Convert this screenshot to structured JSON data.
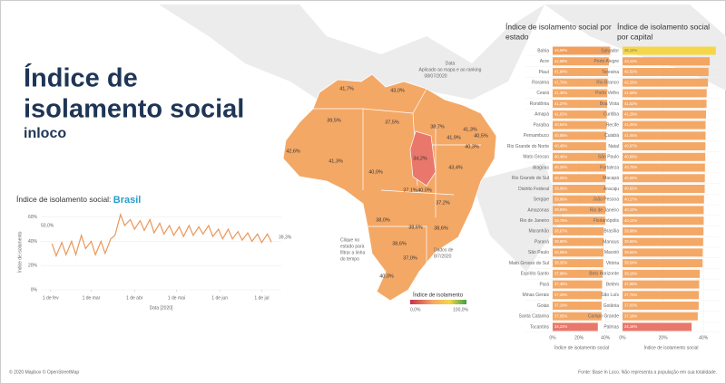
{
  "header": {
    "title_line1": "Índice de",
    "title_line2": "isolamento social",
    "subtitle": "inloco"
  },
  "map": {
    "labels": [
      "41,7%",
      "43,0%",
      "39,5%",
      "37,5%",
      "38,7%",
      "41,3%",
      "41,9%",
      "40,5%",
      "40,3%",
      "42,6%",
      "41,3%",
      "40,0%",
      "34,2%",
      "43,4%",
      "37,1%",
      "40,0%",
      "37,2%",
      "38,0%",
      "38,6%",
      "38,6%",
      "37,0%",
      "38,6%",
      "40,0%"
    ],
    "date_note": [
      "Data",
      "Aplicado ao mapa e ao ranking",
      "08/07/2020"
    ],
    "click_note": [
      "Clique no",
      "estado para",
      "filtrar a linha",
      "do tempo"
    ],
    "data_note": [
      "Dados de",
      "8/7/2020"
    ],
    "legend_title": "Índice de isolamento",
    "legend_min": "0,0%",
    "legend_max": "100,0%"
  },
  "footer": {
    "left": "© 2020 Mapbox © OpenStreetMap",
    "right": "Fonte: Base In Loco. Não representa a população em sua totalidade."
  },
  "chart_data": [
    {
      "type": "line",
      "title": "Índice de isolamento social: ",
      "title_highlight": "Brasil",
      "y_label": "Índice de isolamento",
      "x_label": "Data [2020]",
      "annotations": [
        "50,0%",
        "39,3%"
      ],
      "xlim": [
        "2020-01-25",
        "2020-07-15"
      ],
      "xticks": [
        {
          "value": "2020-02-01",
          "label": "1 de fev"
        },
        {
          "value": "2020-03-01",
          "label": "1 de mar"
        },
        {
          "value": "2020-04-01",
          "label": "1 de abr"
        },
        {
          "value": "2020-05-01",
          "label": "1 de mai"
        },
        {
          "value": "2020-06-01",
          "label": "1 de jun"
        },
        {
          "value": "2020-07-01",
          "label": "1 de jul"
        }
      ],
      "ylim": [
        0,
        62
      ],
      "yticks": [
        {
          "value": 0,
          "label": "0%"
        },
        {
          "value": 20,
          "label": "20%"
        },
        {
          "value": 40,
          "label": "40%"
        },
        {
          "value": 60,
          "label": "60%"
        }
      ],
      "x": [
        "2020-02-02",
        "2020-02-05",
        "2020-02-09",
        "2020-02-12",
        "2020-02-16",
        "2020-02-19",
        "2020-02-23",
        "2020-02-26",
        "2020-03-01",
        "2020-03-04",
        "2020-03-08",
        "2020-03-11",
        "2020-03-15",
        "2020-03-18",
        "2020-03-22",
        "2020-03-25",
        "2020-03-29",
        "2020-04-01",
        "2020-04-05",
        "2020-04-08",
        "2020-04-12",
        "2020-04-15",
        "2020-04-19",
        "2020-04-22",
        "2020-04-26",
        "2020-04-29",
        "2020-05-03",
        "2020-05-06",
        "2020-05-10",
        "2020-05-13",
        "2020-05-17",
        "2020-05-20",
        "2020-05-24",
        "2020-05-27",
        "2020-05-31",
        "2020-06-03",
        "2020-06-07",
        "2020-06-10",
        "2020-06-14",
        "2020-06-17",
        "2020-06-21",
        "2020-06-24",
        "2020-06-28",
        "2020-07-01",
        "2020-07-05",
        "2020-07-08"
      ],
      "series": [
        {
          "name": "Brasil",
          "color": "#e9975a",
          "values": [
            38,
            28,
            39,
            29,
            40,
            29,
            45,
            34,
            40,
            29,
            40,
            30,
            42,
            45,
            62,
            53,
            58,
            50,
            57,
            49,
            58,
            47,
            55,
            46,
            53,
            45,
            52,
            44,
            53,
            45,
            52,
            46,
            53,
            44,
            50,
            42,
            50,
            42,
            48,
            41,
            47,
            40,
            46,
            39,
            46,
            39.3
          ]
        }
      ]
    },
    {
      "type": "hbar",
      "title": [
        "Índice de isolamento social por",
        "estado"
      ],
      "x_label": "Índice de isolamento social",
      "xlim": [
        0,
        44
      ],
      "xticks": [
        {
          "value": 0,
          "label": "0%"
        },
        {
          "value": 20,
          "label": "20%"
        },
        {
          "value": 40,
          "label": "40%"
        }
      ],
      "categories": [
        "Bahia",
        "Acre",
        "Piauí",
        "Roraima",
        "Ceará",
        "Rondônia",
        "Amapá",
        "Paraíba",
        "Pernambuco",
        "Rio Grande do Norte",
        "Mato Grosso",
        "Alagoas",
        "Rio Grande do Sul",
        "Distrito Federal",
        "Sergipe",
        "Amazonas",
        "Rio de Janeiro",
        "Maranhão",
        "Paraná",
        "São Paulo",
        "Mato Grosso do Sul",
        "Espírito Santo",
        "Pará",
        "Minas Gerais",
        "Goiás",
        "Santa Catarina",
        "Tocantins"
      ],
      "values": [
        43.59,
        42.58,
        41.94,
        41.7,
        41.35,
        41.27,
        41.02,
        40.84,
        40.58,
        40.46,
        40.46,
        40.29,
        40.05,
        39.98,
        39.96,
        39.93,
        39.78,
        38.67,
        38.6,
        38.56,
        38.35,
        37.98,
        37.49,
        37.29,
        37.1,
        37.05,
        34.22
      ],
      "value_labels": [
        "43,59%",
        "42,58%",
        "41,94%",
        "41,70%",
        "41,35%",
        "41,27%",
        "41,02%",
        "40,84%",
        "40,58%",
        "40,46%",
        "40,46%",
        "40,29%",
        "40,05%",
        "39,98%",
        "39,96%",
        "39,93%",
        "39,78%",
        "38,67%",
        "38,60%",
        "38,56%",
        "38,35%",
        "37,98%",
        "37,49%",
        "37,29%",
        "37,10%",
        "37,05%",
        "34,22%"
      ],
      "colors": [
        "#f29f5c",
        "#f3a563",
        "#f4a866",
        "#f4a866",
        "#f4a866",
        "#f4a866",
        "#f4a866",
        "#f4a866",
        "#f4a866",
        "#f4a866",
        "#f4a866",
        "#f4a866",
        "#f4a866",
        "#f4a866",
        "#f4a866",
        "#f4a866",
        "#f4a866",
        "#f4a866",
        "#f4a866",
        "#f4a866",
        "#f4a866",
        "#f4a866",
        "#f4a866",
        "#f4a866",
        "#f4a866",
        "#f4a866",
        "#e9776c"
      ]
    },
    {
      "type": "hbar",
      "title": [
        "Índice de isolamento social",
        "por capital"
      ],
      "x_label": "Índice de isolamento social",
      "xlim": [
        0,
        48
      ],
      "xticks": [
        {
          "value": 0,
          "label": "0%"
        },
        {
          "value": 20,
          "label": "20%"
        },
        {
          "value": 40,
          "label": "40%"
        }
      ],
      "categories": [
        "Salvador",
        "Porto Alegre",
        "Teresina",
        "Rio Branco",
        "Porto Velho",
        "Boa Vista",
        "Curitiba",
        "Recife",
        "Cuiabá",
        "Natal",
        "São Paulo",
        "Fortaleza",
        "Macapá",
        "Aracaju",
        "João Pessoa",
        "Rio de Janeiro",
        "Florianópolis",
        "Brasília",
        "Manaus",
        "Maceió",
        "Vitória",
        "Belo Horizonte",
        "Belém",
        "São Luís",
        "Goiânia",
        "Campo Grande",
        "Palmas"
      ],
      "values": [
        46.12,
        43.11,
        42.52,
        42.25,
        41.59,
        41.52,
        41.29,
        41.05,
        41.04,
        40.97,
        40.89,
        40.75,
        40.69,
        40.62,
        40.27,
        40.12,
        40.12,
        39.98,
        39.84,
        39.64,
        39.54,
        38.19,
        37.88,
        37.75,
        37.63,
        37.19,
        34.16
      ],
      "value_labels": [
        "46,12%",
        "43,11%",
        "42,52%",
        "42,25%",
        "41,59%",
        "41,52%",
        "41,29%",
        "41,05%",
        "41,04%",
        "40,97%",
        "40,89%",
        "40,75%",
        "40,69%",
        "40,62%",
        "40,27%",
        "40,12%",
        "40,12%",
        "39,98%",
        "39,84%",
        "39,64%",
        "39,54%",
        "38,19%",
        "37,88%",
        "37,75%",
        "37,63%",
        "37,19%",
        "34,16%"
      ],
      "colors": [
        "#f5d648",
        "#f3a563",
        "#f4a866",
        "#f4a866",
        "#f4a866",
        "#f4a866",
        "#f4a866",
        "#f4a866",
        "#f4a866",
        "#f4a866",
        "#f4a866",
        "#f4a866",
        "#f4a866",
        "#f4a866",
        "#f4a866",
        "#f4a866",
        "#f4a866",
        "#f4a866",
        "#f4a866",
        "#f4a866",
        "#f4a866",
        "#f4a866",
        "#f4a866",
        "#f4a866",
        "#f4a866",
        "#f4a866",
        "#e9776c"
      ]
    }
  ]
}
